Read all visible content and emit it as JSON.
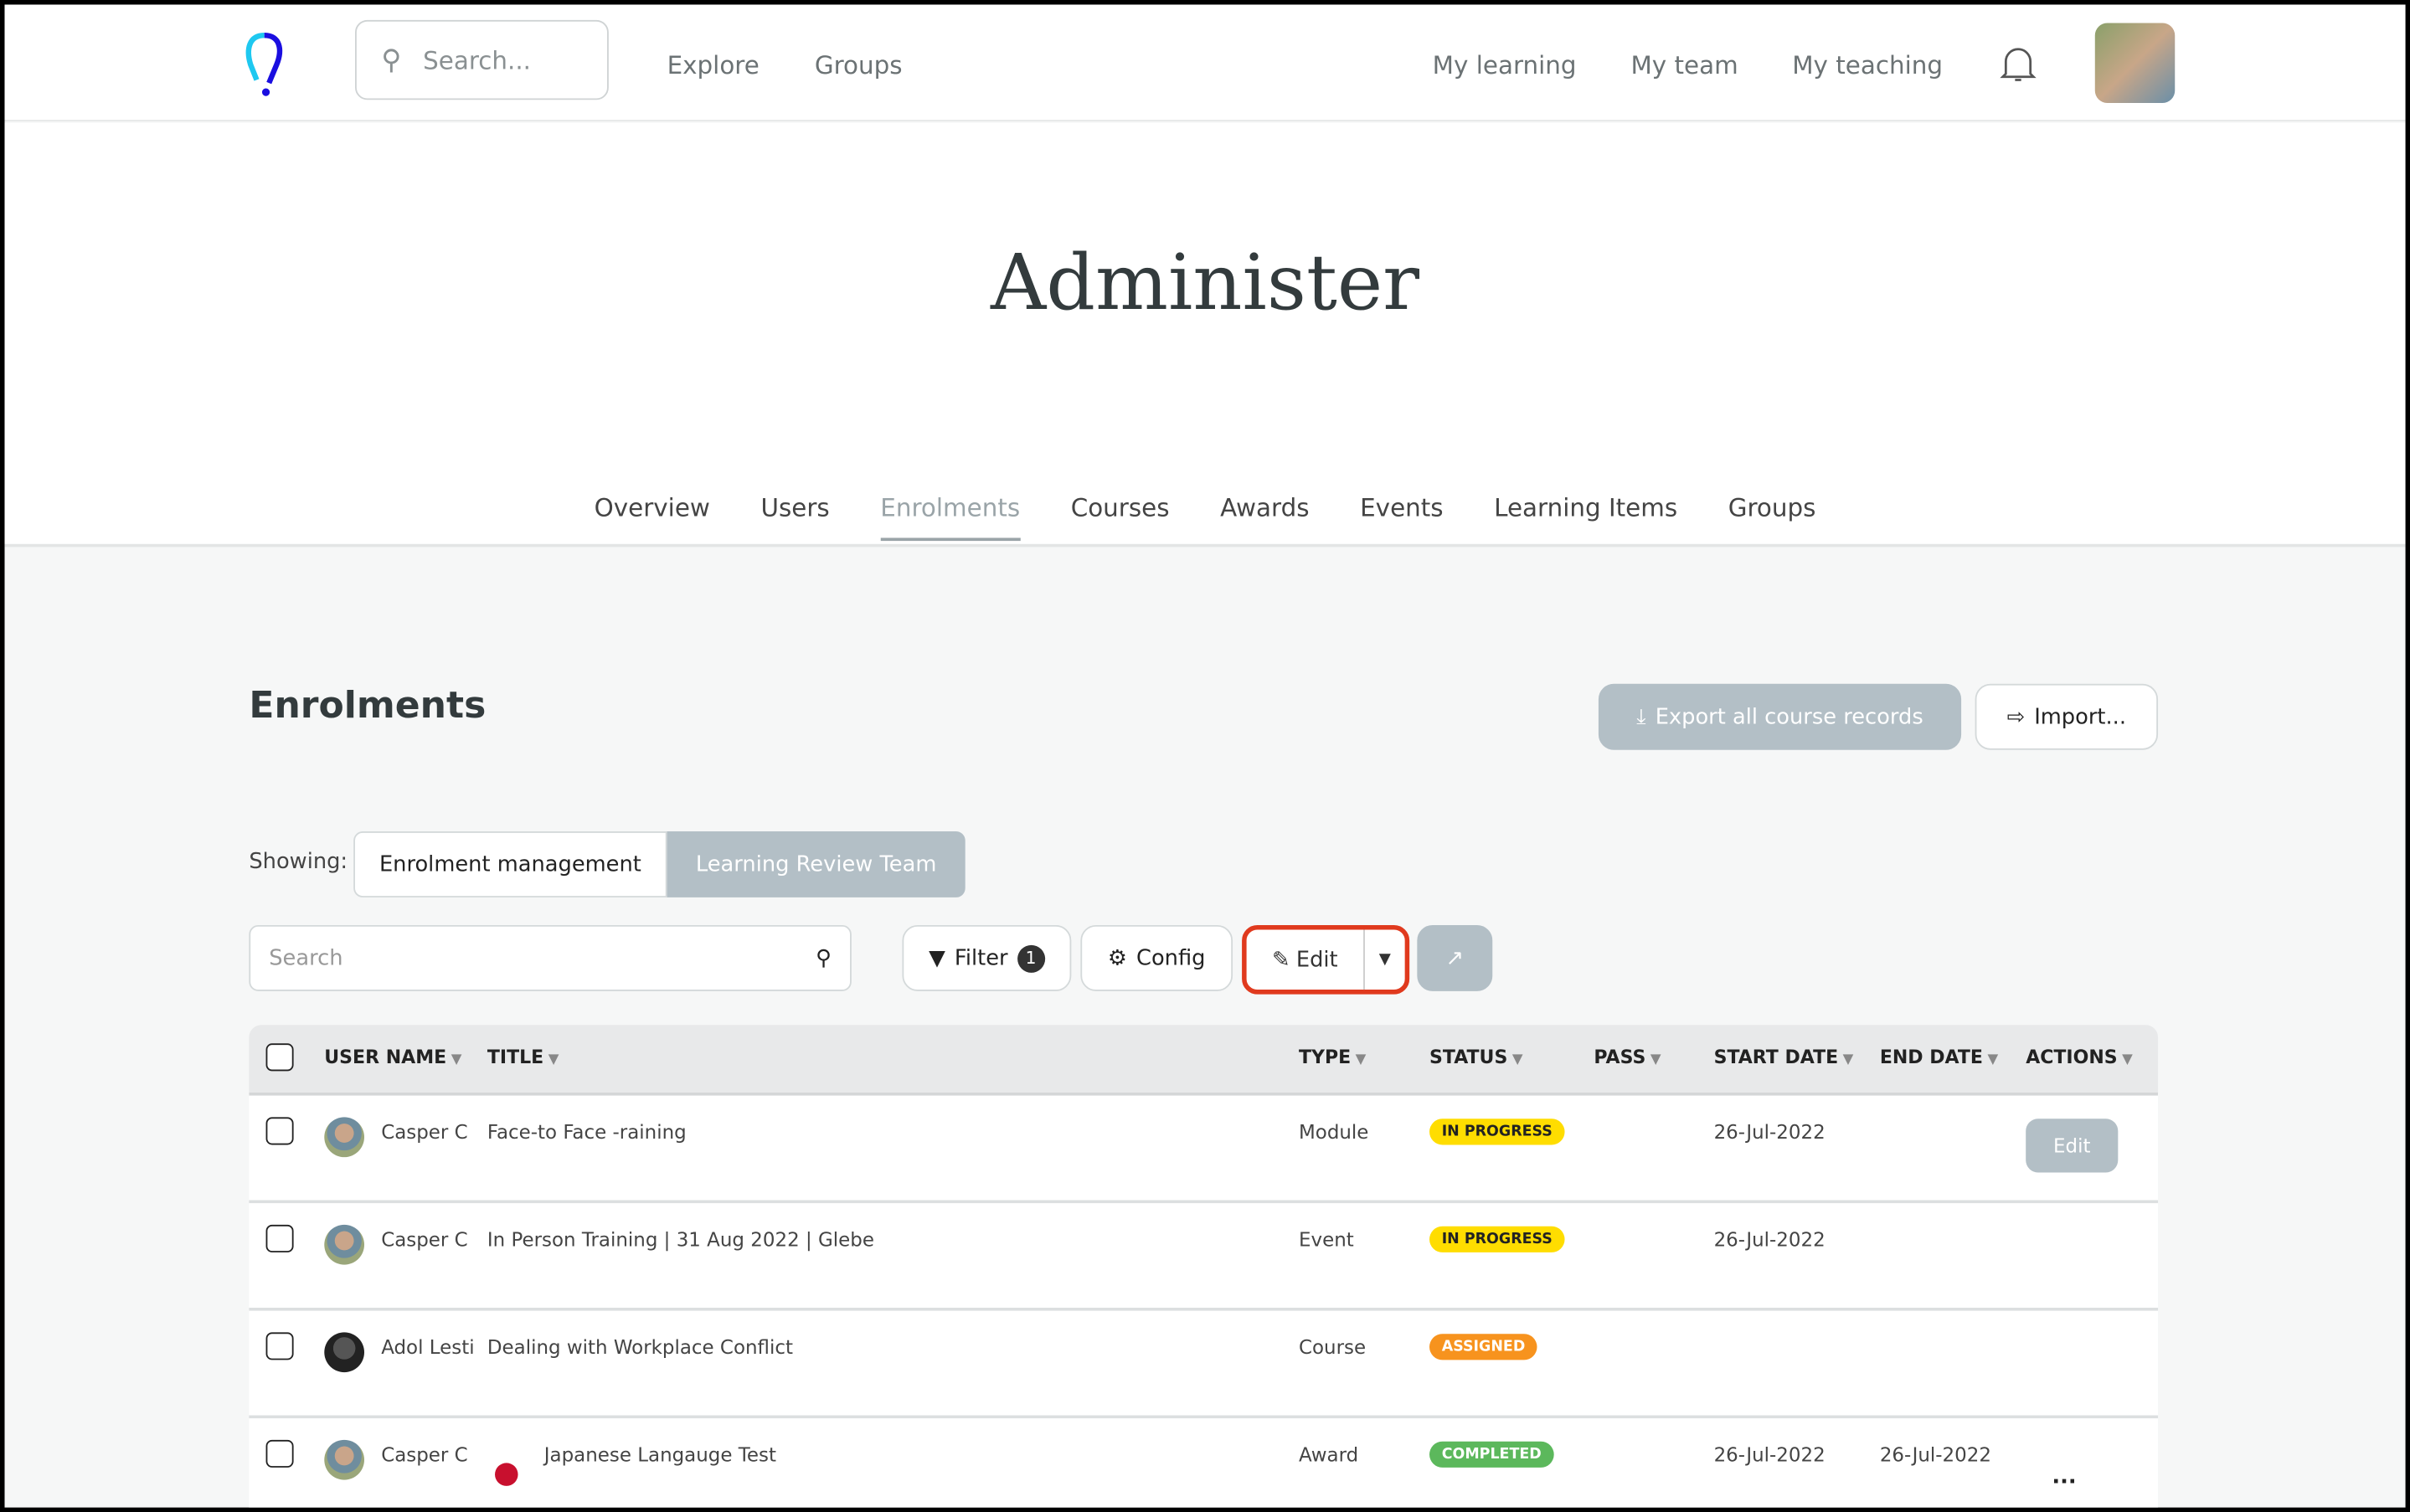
{
  "header": {
    "search_placeholder": "Search...",
    "nav_left": [
      "Explore",
      "Groups"
    ],
    "nav_right": [
      "My learning",
      "My team",
      "My teaching"
    ]
  },
  "page": {
    "title": "Administer",
    "tabs": [
      "Overview",
      "Users",
      "Enrolments",
      "Courses",
      "Awards",
      "Events",
      "Learning Items",
      "Groups"
    ],
    "active_tab": "Enrolments"
  },
  "section": {
    "title": "Enrolments",
    "export_label": "Export all course records",
    "import_label": "Import...",
    "showing_label": "Showing:",
    "views": [
      "Enrolment management",
      "Learning Review Team"
    ]
  },
  "toolbar": {
    "search_placeholder": "Search",
    "filter_label": "Filter",
    "filter_count": "1",
    "config_label": "Config",
    "edit_label": "Edit"
  },
  "table": {
    "columns": [
      "USER NAME",
      "TITLE",
      "TYPE",
      "STATUS",
      "PASS",
      "START DATE",
      "END DATE",
      "ACTIONS"
    ],
    "rows": [
      {
        "user": "Casper C",
        "title": "Face-to Face -raining",
        "type": "Module",
        "status": "IN PROGRESS",
        "start": "26-Jul-2022",
        "end": "",
        "action": "Edit"
      },
      {
        "user": "Casper C",
        "title": "In Person Training | 31 Aug 2022 | Glebe",
        "type": "Event",
        "status": "IN PROGRESS",
        "start": "26-Jul-2022",
        "end": "",
        "action": ""
      },
      {
        "user": "Adol Lesti",
        "title": "Dealing with Workplace Conflict",
        "type": "Course",
        "status": "ASSIGNED",
        "start": "",
        "end": "",
        "action": ""
      },
      {
        "user": "Casper C",
        "title": "Japanese Langauge Test",
        "type": "Award",
        "status": "COMPLETED",
        "start": "26-Jul-2022",
        "end": "26-Jul-2022",
        "action": "..."
      }
    ]
  },
  "colors": {
    "in_progress": "#ffdd00",
    "assigned": "#f7931e",
    "completed": "#5cb85c",
    "highlight": "#e03a1e",
    "accent_gray": "#b3bfc6"
  }
}
